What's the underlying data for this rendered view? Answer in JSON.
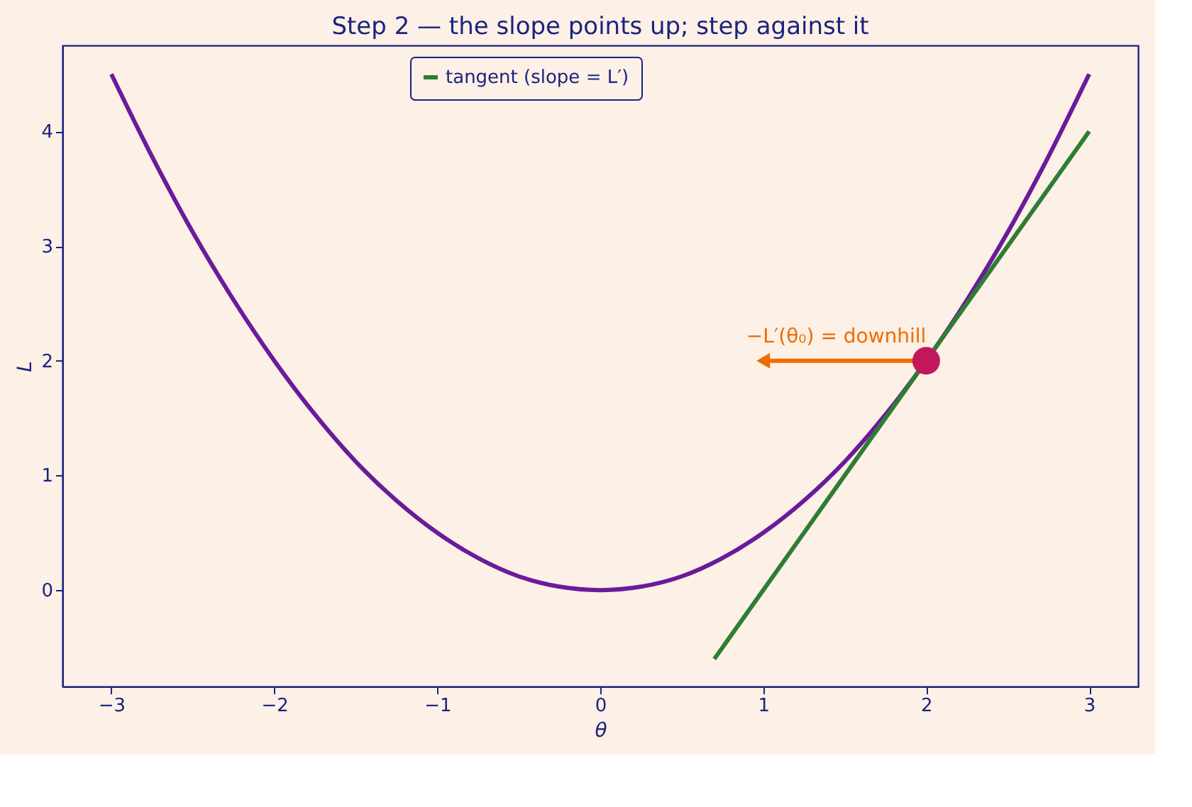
{
  "chart_data": {
    "type": "line",
    "title": "Step 2 — the slope points up; step against it",
    "xlabel": "θ",
    "ylabel": "L",
    "xlim": [
      -3.3,
      3.3
    ],
    "ylim": [
      -0.84,
      4.75
    ],
    "xticks": [
      -3,
      -2,
      -1,
      0,
      1,
      2,
      3
    ],
    "yticks": [
      0,
      1,
      2,
      3,
      4
    ],
    "grid": false,
    "legend": "top",
    "line_style": "solid",
    "marker": "none",
    "series": [
      {
        "color": "#6a1b9a",
        "x": [
          -3,
          -2.75,
          -2.5,
          -2.25,
          -2,
          -1.75,
          -1.5,
          -1.25,
          -1,
          -0.75,
          -0.5,
          -0.25,
          0,
          0.25,
          0.5,
          0.75,
          1,
          1.25,
          1.5,
          1.75,
          2,
          2.25,
          2.5,
          2.75,
          3
        ],
        "values": [
          4.5,
          3.78,
          3.12,
          2.53,
          2,
          1.53,
          1.12,
          0.78,
          0.5,
          0.28,
          0.12,
          0.03,
          0,
          0.03,
          0.12,
          0.28,
          0.5,
          0.78,
          1.12,
          1.53,
          2,
          2.53,
          3.12,
          3.78,
          4.5
        ]
      },
      {
        "name": "tangent (slope = L′)",
        "color": "#2e7d32",
        "x": [
          0.7,
          3
        ],
        "values": [
          -0.6,
          4
        ]
      },
      {
        "color": "#ef6c00",
        "x": [
          2,
          1
        ],
        "values": [
          2,
          2
        ],
        "marker": "triangle"
      },
      {
        "type": "scatter",
        "color": "#c2185b",
        "x": [
          2
        ],
        "values": [
          2
        ],
        "marker": "circle"
      }
    ],
    "annotations": [
      "−L′(θ₀) = downhill"
    ]
  }
}
